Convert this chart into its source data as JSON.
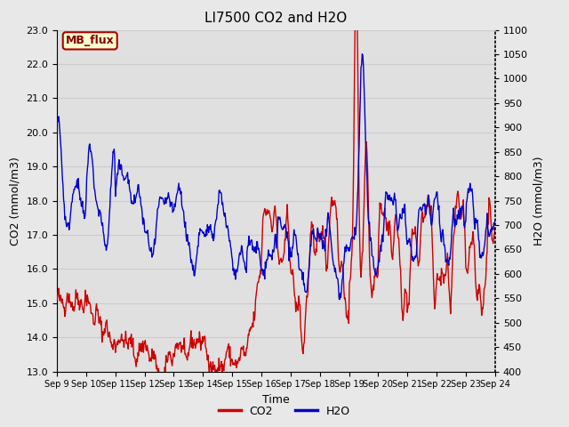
{
  "title": "LI7500 CO2 and H2O",
  "xlabel": "Time",
  "ylabel_left": "CO2 (mmol/m3)",
  "ylabel_right": "H2O (mmol/m3)",
  "ylim_left": [
    13.0,
    23.0
  ],
  "ylim_right": [
    400,
    1100
  ],
  "co2_color": "#cc0000",
  "h2o_color": "#0000cc",
  "fig_bg_color": "#e8e8e8",
  "plot_bg_color": "#e0e0e0",
  "label_box_text": "MB_flux",
  "label_box_facecolor": "#ffffcc",
  "label_box_edgecolor": "#aa0000",
  "label_box_textcolor": "#880000",
  "x_tick_labels": [
    "Sep 9",
    "Sep 10",
    "Sep 11",
    "Sep 12",
    "Sep 13",
    "Sep 14",
    "Sep 15",
    "Sep 16",
    "Sep 17",
    "Sep 18",
    "Sep 19",
    "Sep 20",
    "Sep 21",
    "Sep 22",
    "Sep 23",
    "Sep 24"
  ],
  "left_yticks": [
    13.0,
    14.0,
    15.0,
    16.0,
    17.0,
    18.0,
    19.0,
    20.0,
    21.0,
    22.0,
    23.0
  ],
  "right_yticks": [
    400,
    450,
    500,
    550,
    600,
    650,
    700,
    750,
    800,
    850,
    900,
    950,
    1000,
    1050,
    1100
  ],
  "grid_color": "#cccccc",
  "linewidth": 1.0,
  "tick_fontsize": 8,
  "label_fontsize": 9,
  "title_fontsize": 11
}
